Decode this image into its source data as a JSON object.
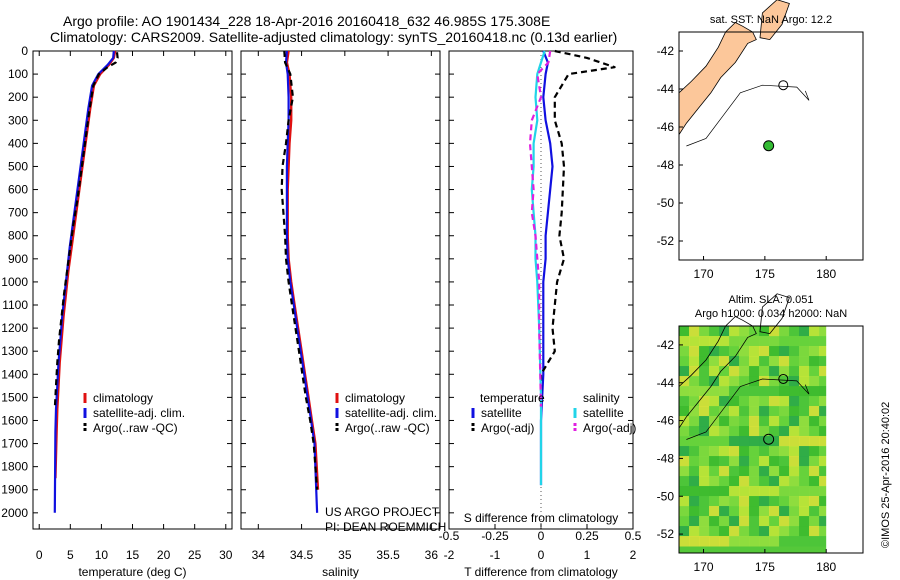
{
  "header": {
    "line1": "Argo profile: AO 1901434_228 18-Apr-2016 20160418_632 46.985S 175.308E",
    "line2": "Climatology: CARS2009. Satellite-adjusted climatology: synTS_20160418.nc (0.13d earlier)"
  },
  "side_label": "©IMOS 25-Apr-2016 20:40:02",
  "colors": {
    "climatology": "#e01010",
    "satellite": "#1010e0",
    "argo": "#000000",
    "salinity_satellite": "#22d4e8",
    "salinity_argo": "#e020e0",
    "land": "#fcc79a"
  },
  "chart_data": [
    {
      "type": "line",
      "xlabel": "temperature (deg C)",
      "xticks": [
        "0",
        "5",
        "10",
        "15",
        "20",
        "25",
        "30"
      ],
      "xlim": [
        -1,
        31
      ],
      "ylabel": "",
      "yticks": [
        "0",
        "100",
        "200",
        "300",
        "400",
        "500",
        "600",
        "700",
        "800",
        "900",
        "1000",
        "1100",
        "1200",
        "1300",
        "1400",
        "1500",
        "1600",
        "1700",
        "1800",
        "1900",
        "2000"
      ],
      "ylim": [
        0,
        2070
      ],
      "y_inverted": true,
      "legend": [
        "climatology",
        "satellite-adj. clim.",
        "Argo(..raw -QC)"
      ],
      "series": [
        {
          "name": "climatology",
          "x": [
            12.2,
            12.0,
            11.2,
            9.8,
            8.8,
            8.2,
            7.7,
            7.2,
            6.7,
            6.2,
            5.7,
            5.2,
            4.7,
            4.3,
            3.9,
            3.6,
            3.3,
            3.1,
            2.9,
            2.8,
            2.6
          ],
          "y": [
            0,
            30,
            60,
            100,
            150,
            250,
            350,
            450,
            550,
            650,
            750,
            850,
            950,
            1050,
            1150,
            1250,
            1350,
            1450,
            1550,
            1650,
            1850
          ]
        },
        {
          "name": "satellite-adj. clim.",
          "x": [
            12.0,
            11.9,
            11.0,
            9.5,
            8.5,
            7.9,
            7.4,
            6.9,
            6.4,
            5.9,
            5.4,
            4.9,
            4.5,
            4.1,
            3.7,
            3.4,
            3.1,
            2.9,
            2.7,
            2.6,
            2.5
          ],
          "y": [
            0,
            30,
            60,
            100,
            150,
            250,
            350,
            450,
            550,
            650,
            750,
            850,
            950,
            1050,
            1150,
            1250,
            1350,
            1450,
            1550,
            1650,
            2000
          ]
        },
        {
          "name": "Argo(..raw -QC)",
          "x": [
            12.5,
            12.6,
            12.3,
            11.0,
            9.6,
            8.7,
            8.1,
            7.6,
            7.1,
            6.6,
            6.1,
            5.5,
            5.0,
            4.5,
            4.0,
            3.6,
            3.2,
            2.9,
            2.7,
            2.5
          ],
          "y": [
            5,
            30,
            50,
            70,
            100,
            150,
            250,
            350,
            450,
            550,
            650,
            750,
            850,
            950,
            1050,
            1150,
            1250,
            1350,
            1450,
            1550
          ]
        }
      ]
    },
    {
      "type": "line",
      "xlabel": "salinity",
      "xticks": [
        "34",
        "34.5",
        "35",
        "35.5",
        "36"
      ],
      "xlim": [
        33.8,
        36.1
      ],
      "ylabel": "",
      "ylim": [
        0,
        2070
      ],
      "y_inverted": true,
      "legend": [
        "climatology",
        "satellite-adj. clim.",
        "Argo(..raw -QC)"
      ],
      "annotation": [
        "US ARGO PROJECT",
        "PI: DEAN ROEMMICH"
      ],
      "series": [
        {
          "name": "climatology",
          "x": [
            34.35,
            34.33,
            34.36,
            34.38,
            34.38,
            34.36,
            34.35,
            34.34,
            34.34,
            34.34,
            34.35,
            34.38,
            34.42,
            34.46,
            34.5,
            34.54,
            34.58,
            34.62,
            34.66,
            34.69
          ],
          "y": [
            0,
            50,
            100,
            200,
            300,
            400,
            500,
            600,
            700,
            800,
            900,
            1000,
            1100,
            1200,
            1300,
            1400,
            1500,
            1600,
            1700,
            1900
          ]
        },
        {
          "name": "satellite-adj. clim.",
          "x": [
            34.33,
            34.32,
            34.34,
            34.35,
            34.35,
            34.34,
            34.33,
            34.33,
            34.33,
            34.33,
            34.34,
            34.37,
            34.41,
            34.45,
            34.49,
            34.53,
            34.57,
            34.61,
            34.65,
            34.68
          ],
          "y": [
            0,
            50,
            100,
            200,
            300,
            400,
            500,
            600,
            700,
            800,
            900,
            1000,
            1100,
            1200,
            1300,
            1400,
            1500,
            1600,
            1700,
            2000
          ]
        },
        {
          "name": "Argo(..raw -QC)",
          "x": [
            34.3,
            34.31,
            34.37,
            34.4,
            34.35,
            34.32,
            34.28,
            34.27,
            34.29,
            34.31,
            34.32,
            34.35,
            34.39,
            34.43,
            34.47,
            34.51,
            34.55,
            34.6,
            34.64,
            34.68
          ],
          "y": [
            0,
            50,
            100,
            200,
            300,
            400,
            500,
            600,
            700,
            800,
            900,
            1000,
            1100,
            1200,
            1300,
            1400,
            1500,
            1600,
            1700,
            1900
          ]
        }
      ]
    },
    {
      "type": "line",
      "xlabel": "T difference from climatology",
      "xlabel_top": "S difference from climatology",
      "xticks": [
        "-2",
        "-1",
        "0",
        "1",
        "2"
      ],
      "xlim": [
        -2,
        2
      ],
      "xticks_top": [
        "-0.5",
        "-0.25",
        "0",
        "0.25",
        "0.5"
      ],
      "ylabel": "",
      "ylim": [
        0,
        2070
      ],
      "y_inverted": true,
      "legend_titles": [
        "temperature",
        "salinity"
      ],
      "legend": [
        "satellite",
        "Argo(-adj)",
        "satellite",
        "Argo(-adj)"
      ],
      "series": [
        {
          "name": "temperature satellite",
          "x": [
            0.05,
            0.15,
            0.1,
            0.05,
            0.1,
            0.2,
            0.25,
            0.2,
            0.15,
            0.1,
            0.1,
            0.05,
            0.05,
            0.05,
            0.05,
            0.0,
            0.0,
            0.0
          ],
          "y": [
            0,
            50,
            100,
            200,
            300,
            400,
            500,
            600,
            700,
            800,
            900,
            1000,
            1100,
            1200,
            1400,
            1600,
            1800,
            1880
          ]
        },
        {
          "name": "temperature Argo(-adj)",
          "x": [
            0.3,
            1.0,
            1.6,
            0.6,
            0.3,
            0.3,
            0.45,
            0.5,
            0.45,
            0.4,
            0.5,
            0.35,
            0.3,
            0.25,
            0.3,
            0.0,
            0.0,
            0.0
          ],
          "y": [
            0,
            30,
            70,
            100,
            200,
            300,
            400,
            500,
            700,
            800,
            900,
            1000,
            1100,
            1200,
            1300,
            1400,
            1500,
            1540
          ]
        },
        {
          "name": "salinity satellite",
          "x": [
            0.02,
            0.0,
            -0.02,
            -0.03,
            -0.02,
            -0.04,
            -0.04,
            -0.05,
            -0.04,
            -0.03,
            -0.03,
            -0.02,
            -0.01,
            0.0,
            0.0
          ],
          "y": [
            0,
            50,
            100,
            200,
            300,
            400,
            500,
            600,
            700,
            800,
            900,
            1000,
            1200,
            1500,
            1880
          ]
        },
        {
          "name": "salinity Argo(-adj)",
          "x": [
            0.05,
            0.04,
            -0.02,
            0.0,
            -0.05,
            -0.06,
            -0.05,
            -0.04,
            -0.05,
            -0.03,
            -0.02,
            -0.01,
            -0.01,
            0.0
          ],
          "y": [
            0,
            50,
            100,
            200,
            300,
            400,
            500,
            600,
            700,
            800,
            900,
            1000,
            1200,
            1540
          ]
        }
      ]
    },
    {
      "type": "map",
      "title": "sat. SST: NaN Argo: 12.2",
      "xticks": [
        "170",
        "175",
        "180"
      ],
      "xlim": [
        168,
        183
      ],
      "yticks": [
        "-42",
        "-44",
        "-46",
        "-48",
        "-50",
        "-52"
      ],
      "ylim": [
        -53,
        -41
      ],
      "marker": {
        "lon": 175.308,
        "lat": -46.985,
        "color": "#33bb33"
      }
    },
    {
      "type": "map",
      "title_lines": [
        "Altim. SLA: 0.051",
        "Argo h1000: 0.034 h2000: NaN"
      ],
      "xticks": [
        "170",
        "175",
        "180"
      ],
      "xlim": [
        168,
        183
      ],
      "yticks": [
        "-42",
        "-44",
        "-46",
        "-48",
        "-50",
        "-52"
      ],
      "ylim": [
        -53,
        -41
      ],
      "marker": {
        "lon": 175.308,
        "lat": -46.985,
        "color": "#33bb33"
      }
    }
  ]
}
